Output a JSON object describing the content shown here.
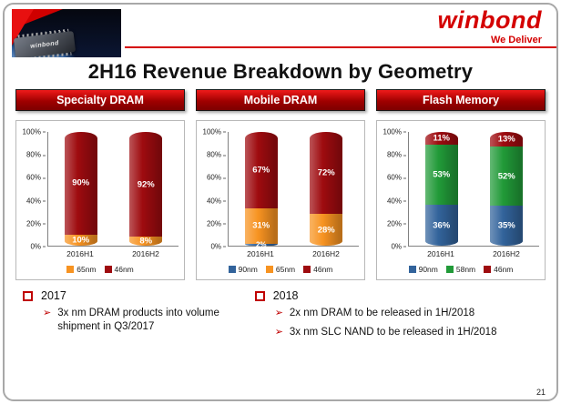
{
  "slide": {
    "title": "2H16 Revenue Breakdown by Geometry",
    "brand": {
      "name": "winbond",
      "tagline": "We Deliver"
    },
    "chip_label": "winbond",
    "page_number": "21"
  },
  "icons": {
    "arrow_bullet": "➢"
  },
  "colors": {
    "brand_red": "#d40000",
    "bar_red": "#9e0b0f",
    "bar_orange": "#f79321",
    "bar_blue": "#32639b",
    "bar_green": "#219a38"
  },
  "chart_data": [
    {
      "type": "bar",
      "stacked": true,
      "title": "Specialty  DRAM",
      "categories": [
        "2016H1",
        "2016H2"
      ],
      "series": [
        {
          "name": "65nm",
          "color": "#f79321",
          "values": [
            10,
            8
          ]
        },
        {
          "name": "46nm",
          "color": "#9e0b0f",
          "values": [
            90,
            92
          ]
        }
      ],
      "ylim": [
        0,
        100
      ],
      "yticks": [
        "0%",
        "20%",
        "40%",
        "60%",
        "80%",
        "100%"
      ],
      "legend_position": "bottom"
    },
    {
      "type": "bar",
      "stacked": true,
      "title": "Mobile DRAM",
      "categories": [
        "2016H1",
        "2016H2"
      ],
      "series": [
        {
          "name": "90nm",
          "color": "#32639b",
          "values": [
            2,
            0
          ]
        },
        {
          "name": "65nm",
          "color": "#f79321",
          "values": [
            31,
            28
          ]
        },
        {
          "name": "46nm",
          "color": "#9e0b0f",
          "values": [
            67,
            72
          ]
        }
      ],
      "ylim": [
        0,
        100
      ],
      "yticks": [
        "0%",
        "20%",
        "40%",
        "60%",
        "80%",
        "100%"
      ],
      "legend_position": "bottom"
    },
    {
      "type": "bar",
      "stacked": true,
      "title": "Flash Memory",
      "categories": [
        "2016H1",
        "2016H2"
      ],
      "series": [
        {
          "name": "90nm",
          "color": "#32639b",
          "values": [
            36,
            35
          ]
        },
        {
          "name": "58nm",
          "color": "#219a38",
          "values": [
            53,
            52
          ]
        },
        {
          "name": "46nm",
          "color": "#9e0b0f",
          "values": [
            11,
            13
          ]
        }
      ],
      "ylim": [
        0,
        100
      ],
      "yticks": [
        "0%",
        "20%",
        "40%",
        "60%",
        "80%",
        "100%"
      ],
      "legend_position": "bottom"
    }
  ],
  "notes": [
    {
      "year": "2017",
      "items": [
        "3x nm DRAM products into volume shipment in Q3/2017"
      ]
    },
    {
      "year": "2018",
      "items": [
        "2x nm DRAM to be released in 1H/2018",
        "3x nm SLC NAND to be released in 1H/2018"
      ]
    }
  ]
}
